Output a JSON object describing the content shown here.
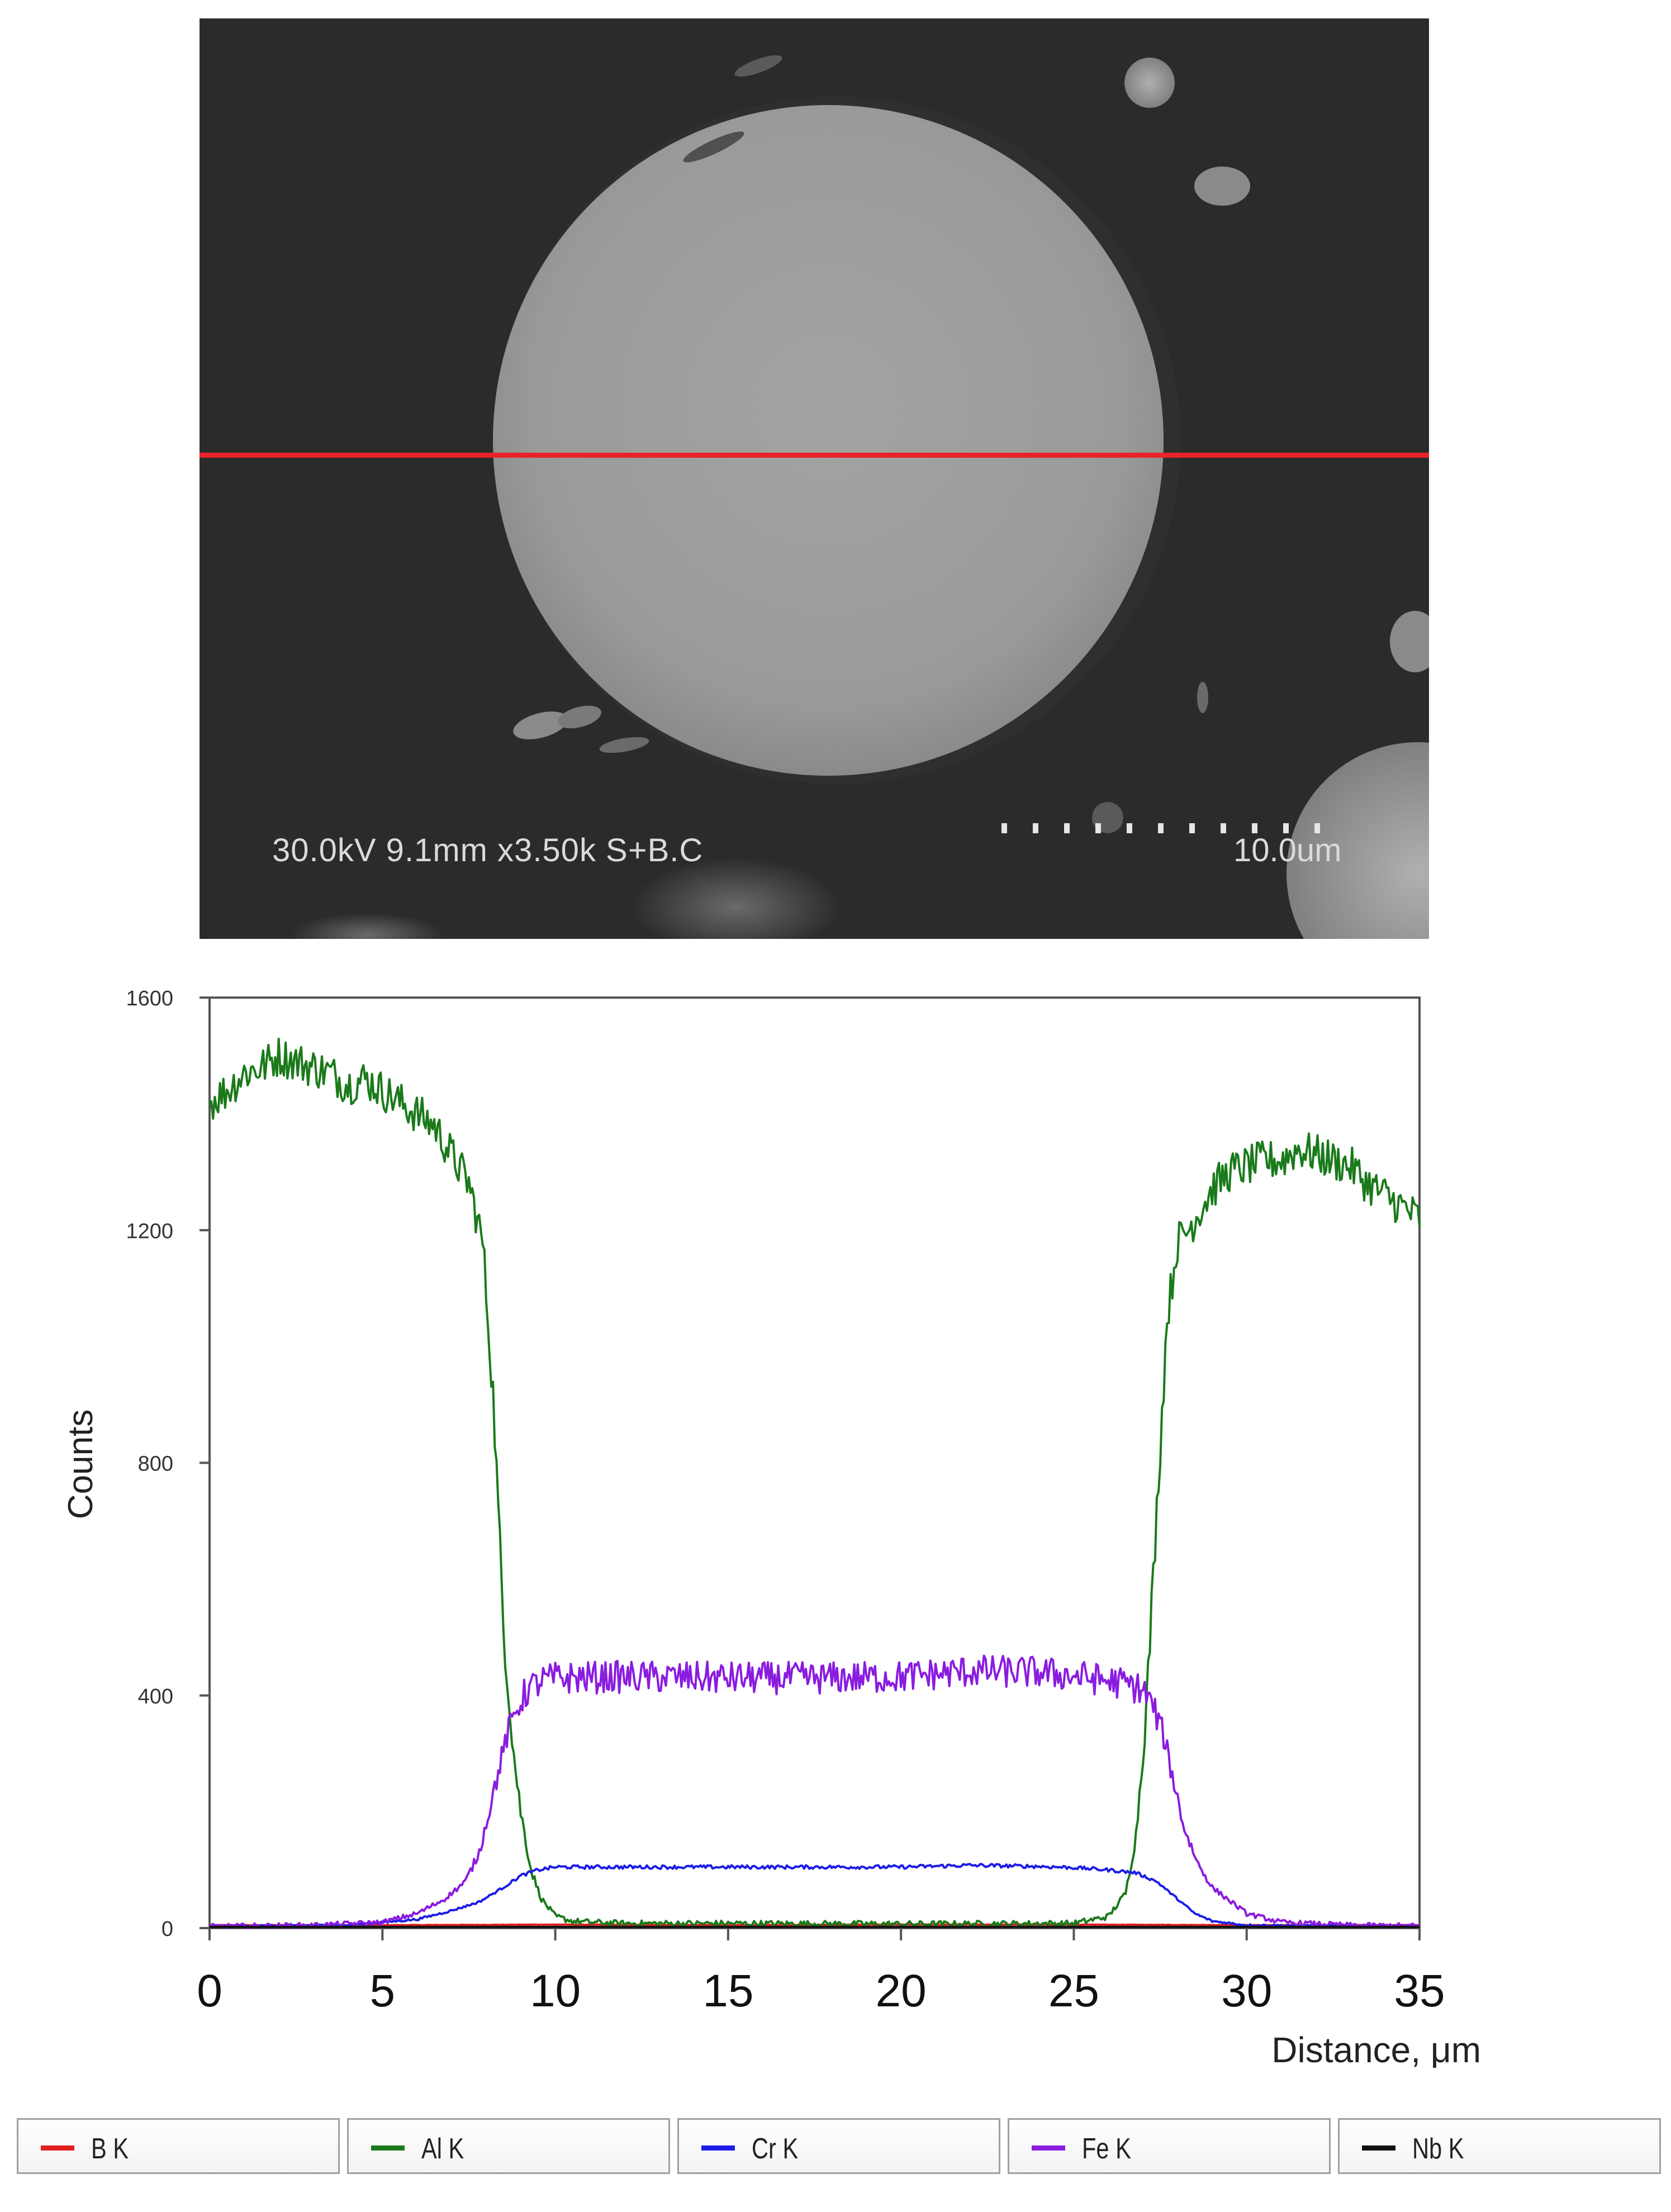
{
  "sem_image": {
    "info_text": "30.0kV 9.1mm x3.50k S+B.C",
    "scale_label": "10.0um",
    "line_color": "#e8232a"
  },
  "chart_data": {
    "type": "line",
    "title": "",
    "xlabel": "Distance, μm",
    "ylabel": "Counts",
    "xlim": [
      0,
      35
    ],
    "ylim": [
      0,
      1600
    ],
    "x_ticks": [
      0,
      5,
      10,
      15,
      20,
      25,
      30,
      35
    ],
    "x_tick_labels": [
      "0",
      "5",
      "10",
      "15",
      "20",
      "25",
      "30",
      "35"
    ],
    "y_ticks": [
      0,
      400,
      800,
      1200,
      1600
    ],
    "y_tick_labels": [
      "0",
      "400",
      "800",
      "1200",
      "1600"
    ],
    "grid": false,
    "legend_position": "bottom",
    "series": [
      {
        "name": "B K",
        "color": "#e0201e",
        "x": [
          0,
          5,
          10,
          15,
          20,
          25,
          30,
          35
        ],
        "y": [
          5,
          5,
          6,
          5,
          6,
          6,
          5,
          5
        ]
      },
      {
        "name": "Al K",
        "color": "#1a7a1a",
        "x": [
          0,
          0.5,
          1,
          1.5,
          2,
          2.5,
          3,
          3.5,
          4,
          4.5,
          5,
          5.5,
          6,
          6.5,
          7,
          7.5,
          7.9,
          8.2,
          8.5,
          8.8,
          9.0,
          9.3,
          9.6,
          10,
          10.5,
          11,
          12,
          15,
          20,
          25,
          26,
          26.5,
          26.8,
          27.1,
          27.4,
          27.7,
          28.0,
          28.3,
          28.6,
          29,
          29.5,
          30,
          30.5,
          31,
          31.5,
          32,
          32.5,
          33,
          33.5,
          34,
          34.5,
          35
        ],
        "y": [
          1420,
          1440,
          1470,
          1480,
          1500,
          1490,
          1480,
          1470,
          1450,
          1460,
          1440,
          1420,
          1400,
          1380,
          1330,
          1280,
          1180,
          920,
          520,
          300,
          200,
          100,
          50,
          20,
          12,
          10,
          8,
          8,
          7,
          8,
          20,
          60,
          160,
          380,
          720,
          1050,
          1180,
          1200,
          1230,
          1270,
          1300,
          1310,
          1320,
          1320,
          1340,
          1330,
          1320,
          1310,
          1280,
          1260,
          1240,
          1220
        ]
      },
      {
        "name": "Cr K",
        "color": "#1c1ce8",
        "x": [
          0,
          4,
          6,
          7,
          7.8,
          8.5,
          9,
          9.5,
          10,
          12,
          15,
          18,
          20,
          22,
          24,
          25,
          26,
          26.8,
          27.4,
          28,
          28.5,
          29,
          30,
          32,
          35
        ],
        "y": [
          3,
          5,
          15,
          30,
          45,
          70,
          90,
          100,
          105,
          105,
          105,
          105,
          105,
          108,
          106,
          104,
          100,
          95,
          80,
          50,
          25,
          12,
          5,
          4,
          3
        ]
      },
      {
        "name": "Fe K",
        "color": "#8a1ce0",
        "x": [
          0,
          3,
          5,
          6,
          6.8,
          7.4,
          7.8,
          8.2,
          8.6,
          8.9,
          9.2,
          9.6,
          10,
          12,
          15,
          18,
          20,
          22,
          24,
          25.5,
          26.5,
          27.0,
          27.3,
          27.6,
          27.9,
          28.2,
          28.6,
          29,
          30,
          31,
          33,
          35
        ],
        "y": [
          3,
          5,
          10,
          25,
          50,
          80,
          130,
          230,
          330,
          380,
          410,
          425,
          430,
          432,
          430,
          430,
          432,
          442,
          440,
          430,
          420,
          410,
          380,
          330,
          250,
          170,
          110,
          70,
          25,
          10,
          5,
          4
        ]
      },
      {
        "name": "Nb K",
        "color": "#111111",
        "x": [
          0,
          5,
          10,
          15,
          20,
          25,
          30,
          35
        ],
        "y": [
          2,
          2,
          2,
          2,
          2,
          2,
          2,
          2
        ]
      }
    ]
  }
}
